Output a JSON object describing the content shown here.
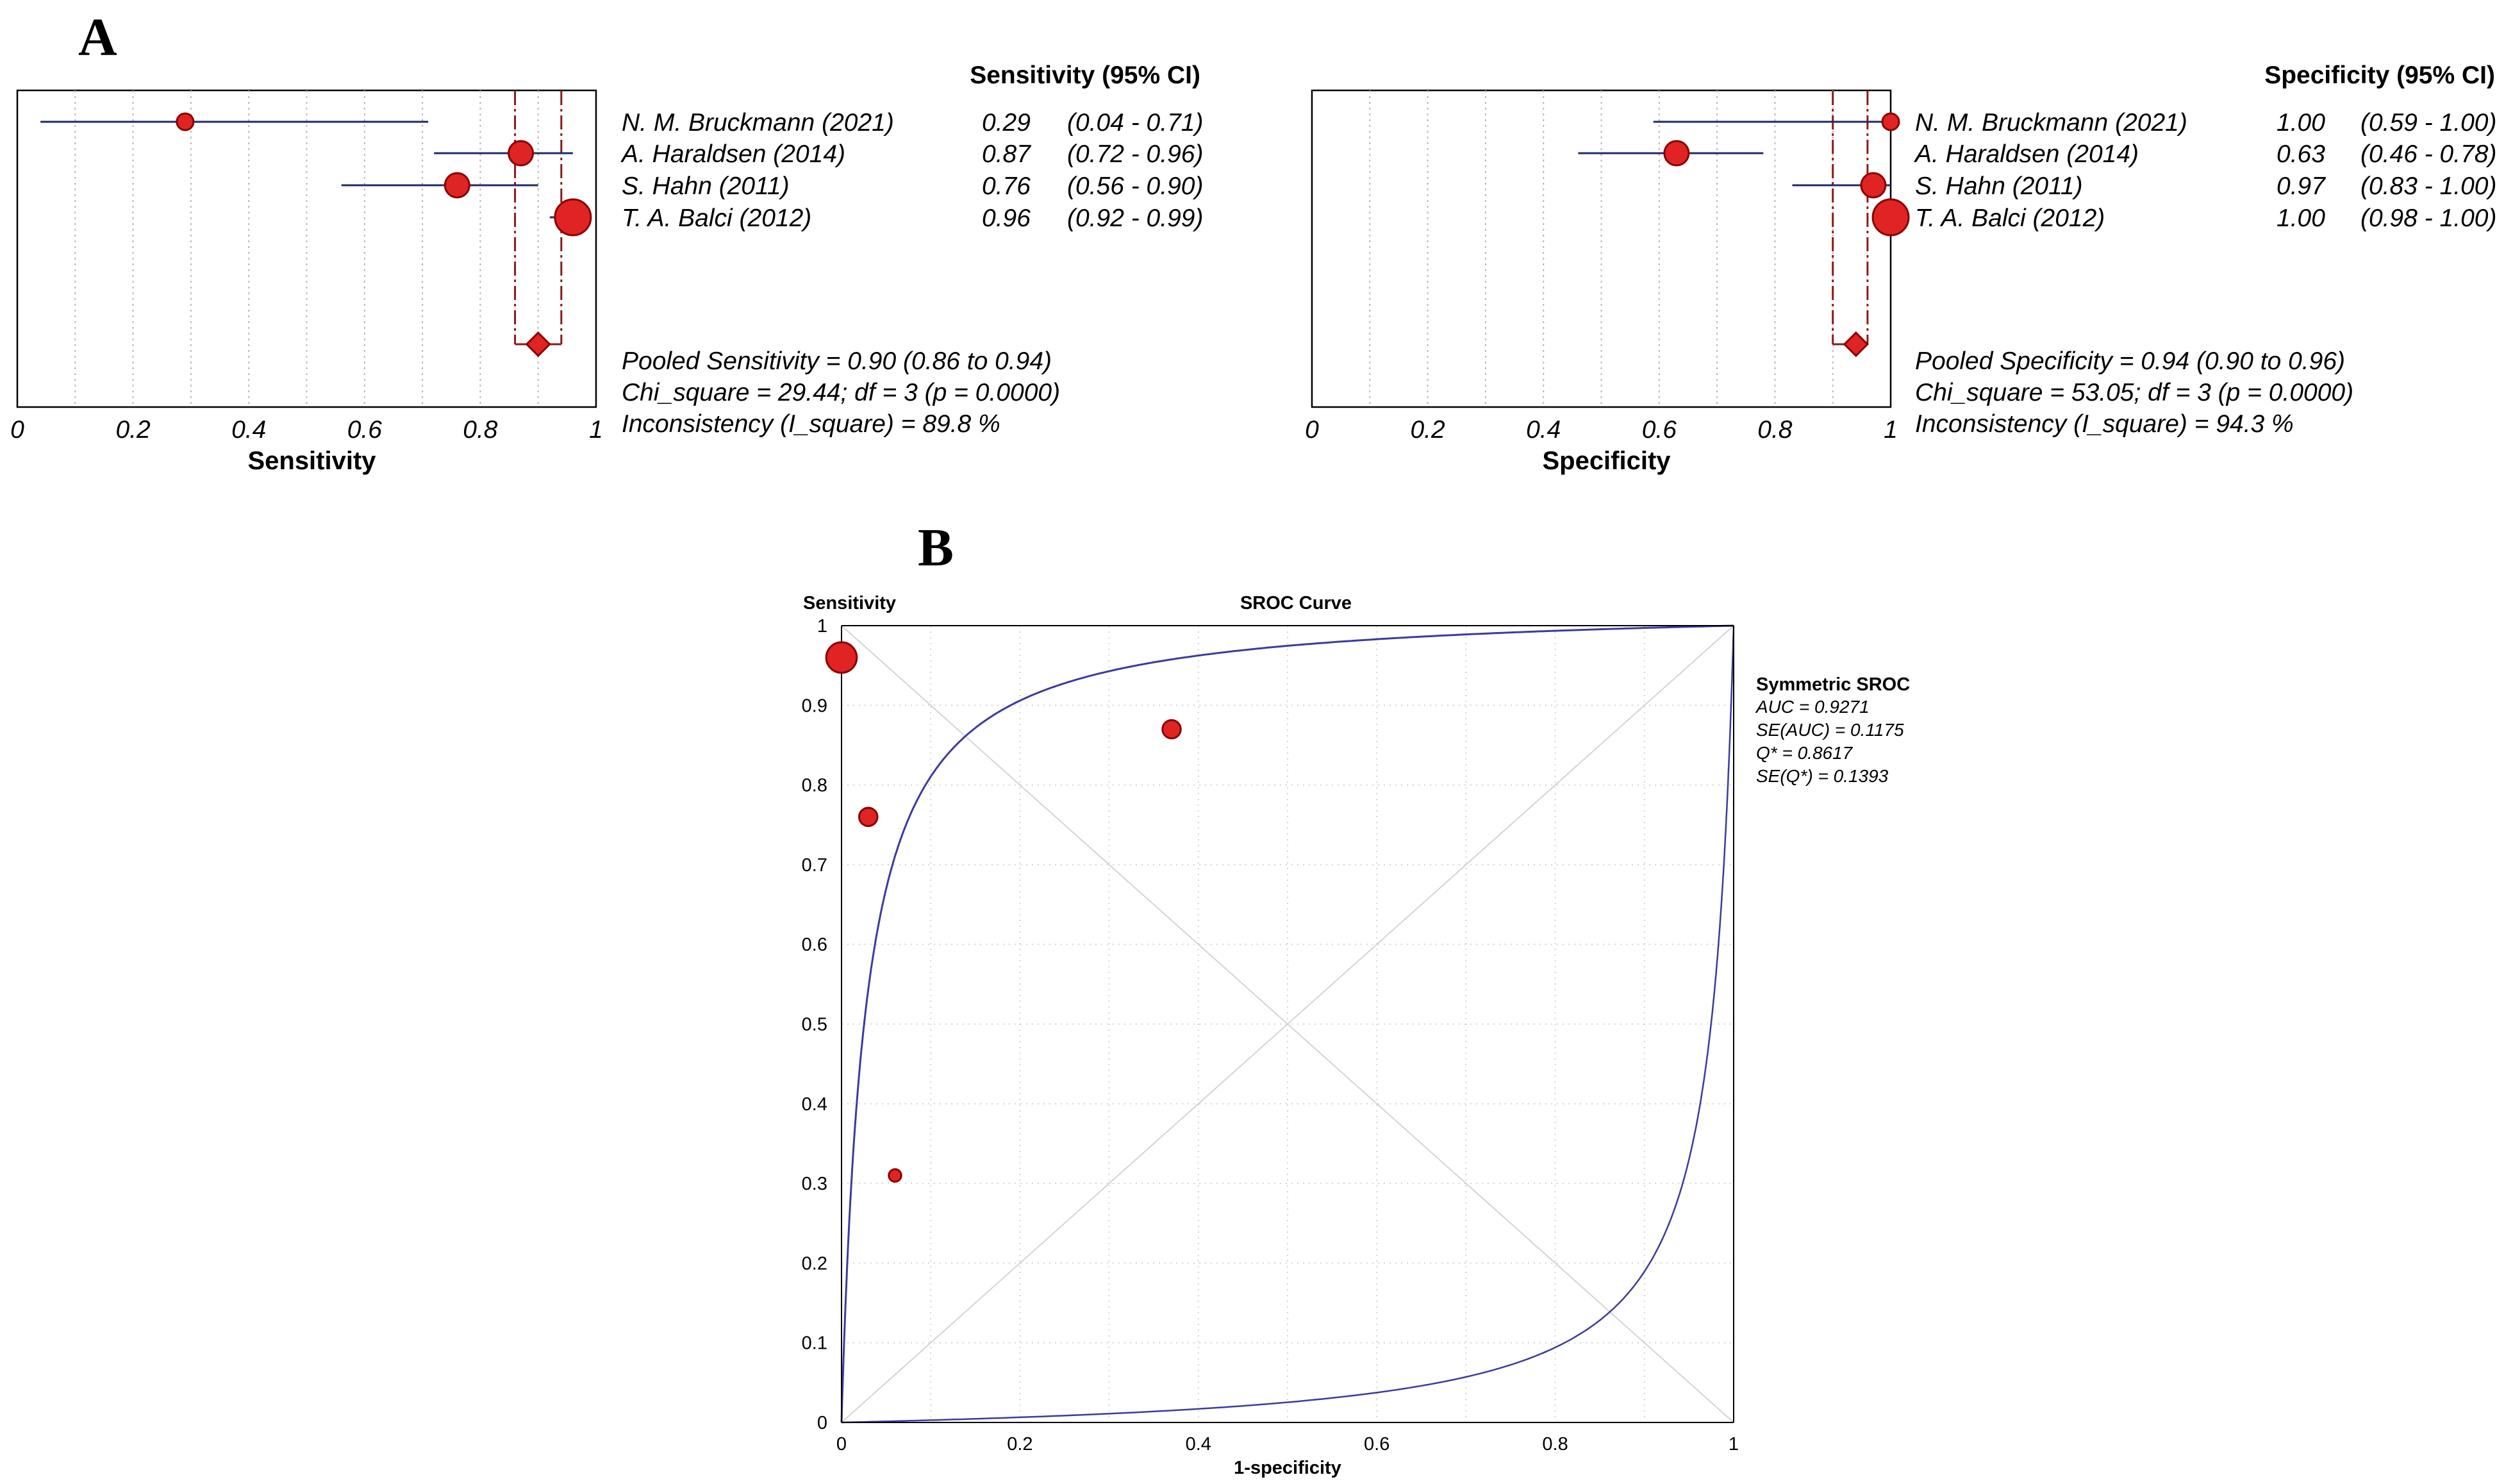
{
  "panel_labels": {
    "a": "A",
    "b": "B"
  },
  "colors": {
    "marker_fill": "#e02424",
    "marker_stroke": "#8a0000",
    "ci_line": "#1f2a6b",
    "pooled_line": "#8b1a1a",
    "curve": "#3b3b9e",
    "grid": "#b8b8b8",
    "diag": "#d4d4d4"
  },
  "chart_data": [
    {
      "type": "forest",
      "id": "sensitivity",
      "header": "Sensitivity (95% CI)",
      "xlabel": "Sensitivity",
      "xlim": [
        0,
        1
      ],
      "ticks": [
        "0",
        "0.2",
        "0.4",
        "0.6",
        "0.8",
        "1"
      ],
      "tick_values": [
        0,
        0.2,
        0.4,
        0.6,
        0.8,
        1
      ],
      "studies": [
        {
          "name": "N. M. Bruckmann (2021)",
          "est": 0.29,
          "lo": 0.04,
          "hi": 0.71,
          "est_text": "0.29",
          "ci_text": "(0.04 - 0.71)",
          "weight": 1
        },
        {
          "name": "A. Haraldsen (2014)",
          "est": 0.87,
          "lo": 0.72,
          "hi": 0.96,
          "est_text": "0.87",
          "ci_text": "(0.72 - 0.96)",
          "weight": 2
        },
        {
          "name": "S. Hahn (2011)",
          "est": 0.76,
          "lo": 0.56,
          "hi": 0.9,
          "est_text": "0.76",
          "ci_text": "(0.56 - 0.90)",
          "weight": 2
        },
        {
          "name": "T. A. Balci (2012)",
          "est": 0.96,
          "lo": 0.92,
          "hi": 0.99,
          "est_text": "0.96",
          "ci_text": "(0.92 - 0.99)",
          "weight": 5
        }
      ],
      "pooled": {
        "est": 0.9,
        "lo": 0.86,
        "hi": 0.94
      },
      "summary": [
        "Pooled Sensitivity = 0.90 (0.86 to 0.94)",
        "Chi_square = 29.44; df =  3 (p = 0.0000)",
        "Inconsistency (I_square) = 89.8 %"
      ]
    },
    {
      "type": "forest",
      "id": "specificity",
      "header": "Specificity (95% CI)",
      "xlabel": "Specificity",
      "xlim": [
        0,
        1
      ],
      "ticks": [
        "0",
        "0.2",
        "0.4",
        "0.6",
        "0.8",
        "1"
      ],
      "tick_values": [
        0,
        0.2,
        0.4,
        0.6,
        0.8,
        1
      ],
      "studies": [
        {
          "name": "N. M. Bruckmann (2021)",
          "est": 1.0,
          "lo": 0.59,
          "hi": 1.0,
          "est_text": "1.00",
          "ci_text": "(0.59 - 1.00)",
          "weight": 1
        },
        {
          "name": "A. Haraldsen (2014)",
          "est": 0.63,
          "lo": 0.46,
          "hi": 0.78,
          "est_text": "0.63",
          "ci_text": "(0.46 - 0.78)",
          "weight": 2
        },
        {
          "name": "S. Hahn (2011)",
          "est": 0.97,
          "lo": 0.83,
          "hi": 1.0,
          "est_text": "0.97",
          "ci_text": "(0.83 - 1.00)",
          "weight": 2
        },
        {
          "name": "T. A. Balci (2012)",
          "est": 1.0,
          "lo": 0.98,
          "hi": 1.0,
          "est_text": "1.00",
          "ci_text": "(0.98 - 1.00)",
          "weight": 5
        }
      ],
      "pooled": {
        "est": 0.94,
        "lo": 0.9,
        "hi": 0.96
      },
      "summary": [
        "Pooled Specificity = 0.94 (0.90 to 0.96)",
        "Chi_square = 53.05; df =  3 (p = 0.0000)",
        "Inconsistency (I_square) = 94.3 %"
      ]
    },
    {
      "type": "scatter",
      "id": "sroc",
      "title": "SROC Curve",
      "ylabel": "Sensitivity",
      "xlabel": "1-specificity",
      "xlim": [
        0,
        1
      ],
      "ylim": [
        0,
        1
      ],
      "xticks": [
        "0",
        "0.2",
        "0.4",
        "0.6",
        "0.8",
        "1"
      ],
      "xtick_values": [
        0,
        0.2,
        0.4,
        0.6,
        0.8,
        1
      ],
      "yticks": [
        "0",
        "0.1",
        "0.2",
        "0.3",
        "0.4",
        "0.5",
        "0.6",
        "0.7",
        "0.8",
        "0.9",
        "1"
      ],
      "ytick_values": [
        0,
        0.1,
        0.2,
        0.3,
        0.4,
        0.5,
        0.6,
        0.7,
        0.8,
        0.9,
        1
      ],
      "points": [
        {
          "x": 0.0,
          "y": 0.96,
          "weight": 5
        },
        {
          "x": 0.37,
          "y": 0.87,
          "weight": 2
        },
        {
          "x": 0.03,
          "y": 0.76,
          "weight": 2
        },
        {
          "x": 0.06,
          "y": 0.31,
          "weight": 1
        }
      ],
      "curve": {
        "model": "symmetric",
        "dor": 38.5
      },
      "legend": {
        "title": "Symmetric SROC",
        "lines": [
          "AUC = 0.9271",
          "SE(AUC) = 0.1175",
          "Q* = 0.8617",
          "SE(Q*) = 0.1393"
        ]
      }
    }
  ]
}
